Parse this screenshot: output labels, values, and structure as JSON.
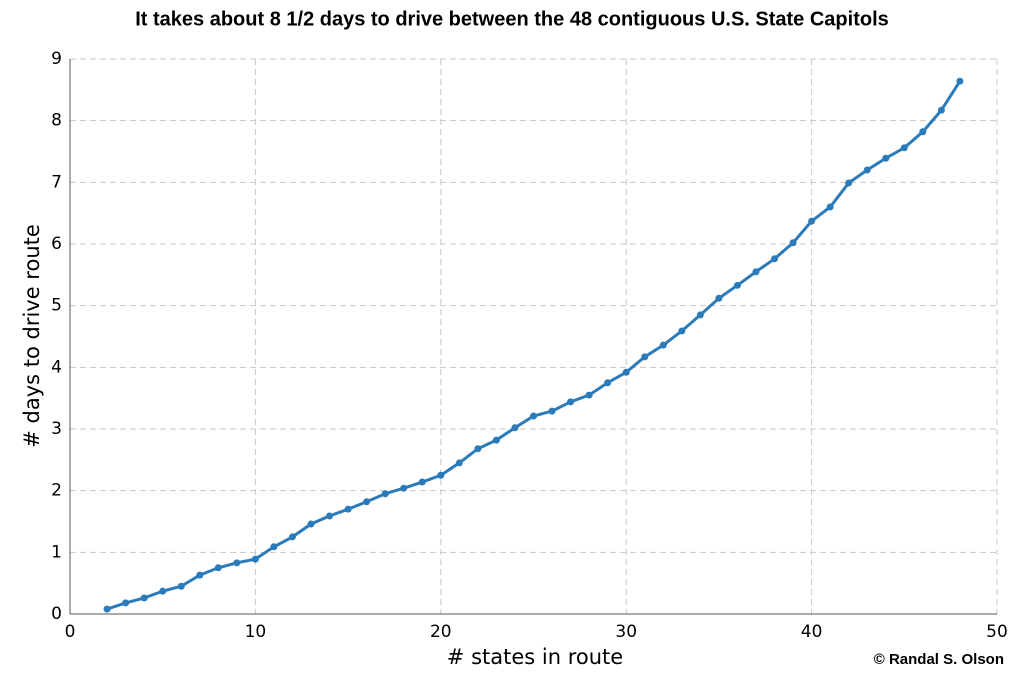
{
  "chart_data": {
    "type": "line",
    "title": "It takes about 8 1/2 days to drive between the 48 contiguous U.S. State Capitols",
    "x_label": "# states in route",
    "y_label": "# days to drive route",
    "credit": "© Randal S. Olson",
    "x": [
      2,
      3,
      4,
      5,
      6,
      7,
      8,
      9,
      10,
      11,
      12,
      13,
      14,
      15,
      16,
      17,
      18,
      19,
      20,
      21,
      22,
      23,
      24,
      25,
      26,
      27,
      28,
      29,
      30,
      31,
      32,
      33,
      34,
      35,
      36,
      37,
      38,
      39,
      40,
      41,
      42,
      43,
      44,
      45,
      46,
      47,
      48
    ],
    "series": [
      {
        "name": "days",
        "color": "#2b7bba",
        "values": [
          0.08,
          0.18,
          0.26,
          0.37,
          0.45,
          0.63,
          0.75,
          0.83,
          0.89,
          1.09,
          1.25,
          1.46,
          1.59,
          1.7,
          1.82,
          1.95,
          2.04,
          2.14,
          2.25,
          2.45,
          2.68,
          2.82,
          3.02,
          3.21,
          3.29,
          3.44,
          3.55,
          3.75,
          3.92,
          4.17,
          4.36,
          4.59,
          4.85,
          5.12,
          5.33,
          5.55,
          5.76,
          6.02,
          6.37,
          6.6,
          6.99,
          7.2,
          7.39,
          7.56,
          7.82,
          8.17,
          8.64
        ]
      }
    ],
    "xlim": [
      0,
      50
    ],
    "xticks": [
      0,
      10,
      20,
      30,
      40,
      50
    ],
    "ylim": [
      0,
      9
    ],
    "yticks": [
      0,
      1,
      2,
      3,
      4,
      5,
      6,
      7,
      8,
      9
    ],
    "grid": true
  }
}
